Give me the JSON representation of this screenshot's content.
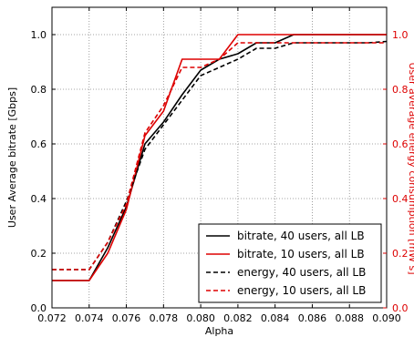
{
  "chart_data": {
    "type": "line",
    "xlabel": "Alpha",
    "ylabel": "User Average bitrate [Gbps]",
    "y2label": "User average energy consumption [mW s]",
    "xlim": [
      0.072,
      0.09
    ],
    "ylim": [
      0.0,
      1.1
    ],
    "y2lim": [
      0.0,
      1.1
    ],
    "grid": true,
    "legend_position": "lower-right",
    "x_ticks": [
      "0.072",
      "0.074",
      "0.076",
      "0.078",
      "0.080",
      "0.082",
      "0.084",
      "0.086",
      "0.088",
      "0.090"
    ],
    "y_ticks": [
      "0.0",
      "0.2",
      "0.4",
      "0.6",
      "0.8",
      "1.0"
    ],
    "y2_ticks": [
      "0.0",
      "0.2",
      "0.4",
      "0.6",
      "0.8",
      "1.0"
    ],
    "x": [
      0.072,
      0.073,
      0.074,
      0.075,
      0.076,
      0.077,
      0.078,
      0.079,
      0.08,
      0.081,
      0.082,
      0.083,
      0.084,
      0.085,
      0.086,
      0.087,
      0.088,
      0.089,
      0.09
    ],
    "series": [
      {
        "name": "bitrate, 40 users, all LB",
        "color": "#000000",
        "dash": "solid",
        "values": [
          0.1,
          0.1,
          0.1,
          0.22,
          0.37,
          0.6,
          0.68,
          0.78,
          0.87,
          0.91,
          0.93,
          0.97,
          0.97,
          1.0,
          1.0,
          1.0,
          1.0,
          1.0,
          1.0
        ]
      },
      {
        "name": "bitrate, 10 users, all LB",
        "color": "#dd0000",
        "dash": "solid",
        "values": [
          0.1,
          0.1,
          0.1,
          0.2,
          0.36,
          0.63,
          0.72,
          0.91,
          0.91,
          0.91,
          1.0,
          1.0,
          1.0,
          1.0,
          1.0,
          1.0,
          1.0,
          1.0,
          1.0
        ]
      },
      {
        "name": "energy, 40 users, all LB",
        "color": "#000000",
        "dash": "dashed",
        "values": [
          0.14,
          0.14,
          0.14,
          0.24,
          0.39,
          0.58,
          0.67,
          0.76,
          0.85,
          0.88,
          0.91,
          0.95,
          0.95,
          0.97,
          0.97,
          0.97,
          0.97,
          0.97,
          0.975
        ]
      },
      {
        "name": "energy, 10 users, all LB",
        "color": "#dd0000",
        "dash": "dashed",
        "values": [
          0.14,
          0.14,
          0.14,
          0.24,
          0.38,
          0.64,
          0.74,
          0.88,
          0.88,
          0.91,
          0.97,
          0.97,
          0.97,
          0.97,
          0.97,
          0.97,
          0.97,
          0.97,
          0.97
        ]
      }
    ]
  },
  "colors": {
    "left_axis": "#000000",
    "right_axis": "#dd0000",
    "grid": "#888888"
  }
}
